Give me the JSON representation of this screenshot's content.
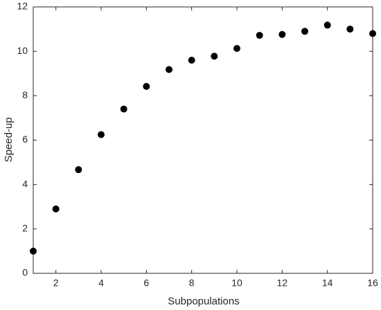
{
  "chart_data": {
    "type": "scatter",
    "xlabel": "Subpopulations",
    "ylabel": "Speed-up",
    "x": [
      1,
      2,
      3,
      4,
      5,
      6,
      7,
      8,
      9,
      10,
      11,
      12,
      13,
      14,
      15,
      16
    ],
    "y": [
      1.0,
      2.9,
      4.67,
      6.25,
      7.4,
      8.42,
      9.18,
      9.6,
      9.78,
      10.13,
      10.72,
      10.76,
      10.9,
      11.18,
      11.0,
      10.8
    ],
    "color": "#000000",
    "xlim": [
      1,
      16
    ],
    "xticks": [
      2,
      4,
      6,
      8,
      10,
      12,
      14,
      16
    ],
    "ylim": [
      0,
      12
    ],
    "yticks": [
      0,
      2,
      4,
      6,
      8,
      10,
      12
    ],
    "grid": false
  }
}
